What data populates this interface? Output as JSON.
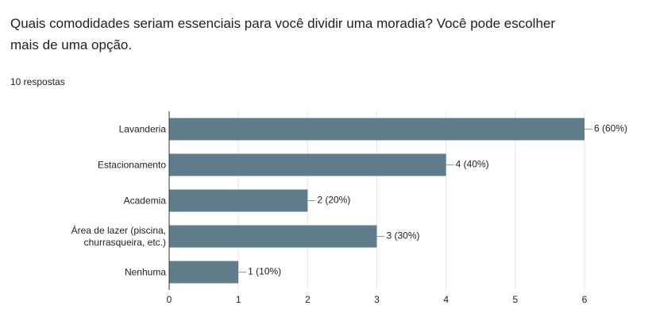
{
  "chart_data": {
    "type": "bar",
    "orientation": "horizontal",
    "title": "Quais comodidades seriam essenciais para você dividir uma moradia?  Você pode escolher mais de uma opção.",
    "subtitle": "10 respostas",
    "categories": [
      "Lavanderia",
      "Estacionamento",
      "Academia",
      "Área de lazer (piscina, churrasqueira, etc.)",
      "Nenhuma"
    ],
    "values": [
      6,
      4,
      2,
      3,
      1
    ],
    "value_labels": [
      "6 (60%)",
      "4 (40%)",
      "2 (20%)",
      "3 (30%)",
      "1 (10%)"
    ],
    "color": "#607d8b",
    "xlim": [
      0,
      6
    ],
    "xticks": [
      0,
      1,
      2,
      3,
      4,
      5,
      6
    ],
    "grid": true
  }
}
